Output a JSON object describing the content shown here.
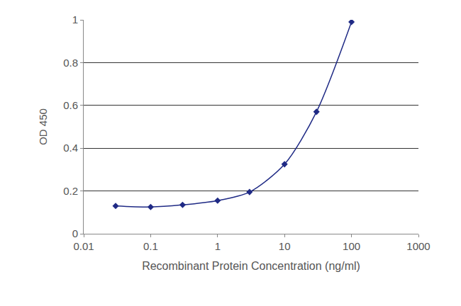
{
  "chart_data": {
    "type": "line",
    "x_label": "Recombinant Protein Concentration (ng/ml)",
    "y_label": "OD 450",
    "x": [
      0.03,
      0.1,
      0.3,
      1,
      3,
      10,
      30,
      100
    ],
    "values": [
      0.13,
      0.125,
      0.135,
      0.155,
      0.195,
      0.325,
      0.57,
      0.99
    ],
    "color": "#1f2a85",
    "marker": "diamond",
    "log": "x",
    "xlim": [
      0.01,
      1000
    ],
    "xticks": [
      0.01,
      0.1,
      1,
      10,
      100,
      1000
    ],
    "ylim": [
      0,
      1
    ],
    "yticks": [
      0,
      0.2,
      0.4,
      0.6,
      0.8,
      1
    ],
    "grid": true
  }
}
